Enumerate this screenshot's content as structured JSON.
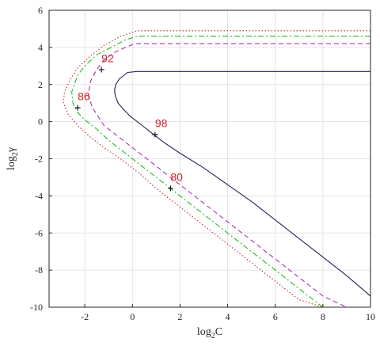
{
  "chart_data": {
    "type": "line",
    "xlabel": "log2C",
    "ylabel": "log2γ",
    "xlim": [
      -3.5,
      10
    ],
    "ylim": [
      -10,
      6
    ],
    "grid": true,
    "xticks": [
      "-2",
      "0",
      "2",
      "4",
      "6",
      "8",
      "10"
    ],
    "xtick_values": [
      -2,
      0,
      2,
      4,
      6,
      8,
      10
    ],
    "yticks": [
      "6",
      "4",
      "2",
      "0",
      "-2",
      "-4",
      "-6",
      "-8",
      "-10"
    ],
    "ytick_values": [
      6,
      4,
      2,
      0,
      -2,
      -4,
      -6,
      -8,
      -10
    ],
    "series": [
      {
        "label": "98",
        "color": "#1f1f5f",
        "style": "solid",
        "x": [
          10,
          0.2,
          -0.2,
          -0.35,
          -0.55,
          -0.7,
          -0.75,
          -0.72,
          -0.6,
          -0.4,
          -0.1,
          0.3,
          0.8,
          1.3,
          2.0,
          3.0,
          4.0,
          5.0,
          6.0,
          7.0,
          8.0,
          9.0,
          10.0
        ],
        "y": [
          2.7,
          2.7,
          2.65,
          2.5,
          2.3,
          2.0,
          1.7,
          1.4,
          1.0,
          0.7,
          0.3,
          -0.1,
          -0.6,
          -1.1,
          -1.7,
          -2.5,
          -3.4,
          -4.3,
          -5.3,
          -6.3,
          -7.3,
          -8.3,
          -9.4
        ]
      },
      {
        "label": "92",
        "color": "#b02fb0",
        "style": "dashed",
        "x": [
          10,
          0.1,
          -0.3,
          -0.8,
          -1.2,
          -1.5,
          -1.75,
          -1.85,
          -1.7,
          -1.45,
          -1.2,
          -0.8,
          -0.4,
          0.2,
          1.0,
          2.0,
          3.0,
          4.0,
          5.0,
          6.0,
          7.0,
          8.0,
          9.0,
          9.6
        ],
        "y": [
          4.2,
          4.2,
          4.0,
          3.7,
          3.3,
          2.8,
          2.2,
          1.5,
          0.8,
          0.3,
          -0.2,
          -0.6,
          -1.0,
          -1.6,
          -2.4,
          -3.4,
          -4.4,
          -5.4,
          -6.4,
          -7.4,
          -8.4,
          -9.4,
          -10.0,
          -10.0
        ]
      },
      {
        "label": "86",
        "color": "#22bb22",
        "style": "dashdot",
        "x": [
          10,
          0.2,
          -0.3,
          -0.9,
          -1.5,
          -2.0,
          -2.3,
          -2.55,
          -2.5,
          -2.3,
          -2.0,
          -1.5,
          -1.0,
          -0.5,
          0.2,
          1.0,
          2.0,
          3.0,
          4.0,
          5.0,
          6.0,
          7.0,
          8.0,
          8.8
        ],
        "y": [
          4.6,
          4.6,
          4.4,
          4.0,
          3.6,
          3.0,
          2.5,
          1.6,
          1.0,
          0.5,
          0.1,
          -0.4,
          -1.0,
          -1.5,
          -2.2,
          -3.0,
          -4.0,
          -5.0,
          -6.0,
          -7.0,
          -8.0,
          -9.0,
          -10.0,
          -10.0
        ]
      },
      {
        "label": "80",
        "color": "#c03030",
        "style": "dotted",
        "x": [
          10,
          0.2,
          -0.5,
          -1.2,
          -1.8,
          -2.3,
          -2.6,
          -2.85,
          -2.9,
          -2.7,
          -2.3,
          -1.8,
          -1.2,
          -0.5,
          0.3,
          1.0,
          2.0,
          3.0,
          4.0,
          5.0,
          6.0,
          7.0,
          8.0
        ],
        "y": [
          4.9,
          4.9,
          4.6,
          4.1,
          3.5,
          2.9,
          2.3,
          1.6,
          1.0,
          0.4,
          -0.2,
          -0.8,
          -1.4,
          -2.0,
          -2.8,
          -3.6,
          -4.6,
          -5.6,
          -6.6,
          -7.6,
          -8.6,
          -9.6,
          -10.0
        ]
      }
    ],
    "annotations": [
      {
        "text": "92",
        "marker": [
          -1.3,
          2.8
        ],
        "text_at": [
          -1.3,
          3.2
        ]
      },
      {
        "text": "86",
        "marker": [
          -2.3,
          0.75
        ],
        "text_at": [
          -2.3,
          1.15
        ]
      },
      {
        "text": "98",
        "marker": [
          0.95,
          -0.7
        ],
        "text_at": [
          0.95,
          -0.3
        ]
      },
      {
        "text": "80",
        "marker": [
          1.6,
          -3.6
        ],
        "text_at": [
          1.6,
          -3.2
        ]
      }
    ],
    "annotation_color": "#cc2222"
  }
}
